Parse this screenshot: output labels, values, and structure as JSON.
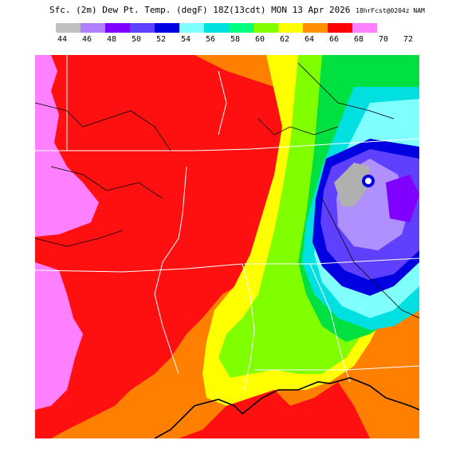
{
  "header": {
    "title_main": "Sfc. (2m) Dew Pt. Temp. (degF) 18Z(13cdt) MON 13 Apr 2026",
    "title_run": "18hrFcst@0204z NAM"
  },
  "legend": {
    "levels": [
      {
        "label": "44",
        "color": "#c0c0c0"
      },
      {
        "label": "46",
        "color": "#b080ff"
      },
      {
        "label": "48",
        "color": "#8000ff"
      },
      {
        "label": "50",
        "color": "#6040ff"
      },
      {
        "label": "52",
        "color": "#0000e0"
      },
      {
        "label": "54",
        "color": "#80ffff"
      },
      {
        "label": "56",
        "color": "#00e0e0"
      },
      {
        "label": "58",
        "color": "#00ff80"
      },
      {
        "label": "60",
        "color": "#80ff00"
      },
      {
        "label": "62",
        "color": "#ffff00"
      },
      {
        "label": "64",
        "color": "#ff9000"
      },
      {
        "label": "66",
        "color": "#ff0000"
      },
      {
        "label": "68",
        "color": "#ff80ff"
      },
      {
        "label": "70",
        "color": ""
      },
      {
        "label": "72",
        "color": ""
      }
    ]
  },
  "colors": {
    "land_bg": "#ff0000",
    "pink": "#ff80ff",
    "red": "#ff1010",
    "orange": "#ff8000",
    "yellow": "#ffff00",
    "lime": "#80ff00",
    "green": "#00e040",
    "cyan": "#00e0e0",
    "lightcyan": "#80ffff",
    "blue": "#0000e0",
    "indigo": "#6040ff",
    "violet": "#8060ff",
    "lavender": "#b090ff",
    "gray": "#b0b0b0",
    "borders": "#ffffff",
    "coast": "#000000"
  }
}
